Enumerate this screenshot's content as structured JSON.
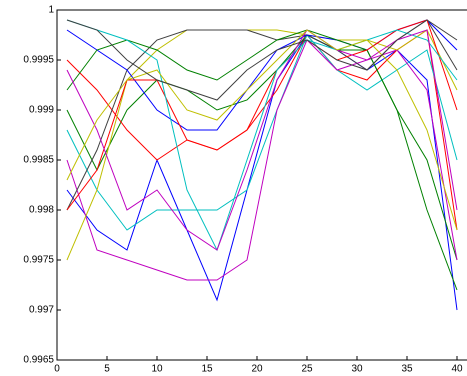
{
  "chart_data": {
    "type": "line",
    "x": [
      1,
      4,
      7,
      10,
      13,
      16,
      19,
      22,
      25,
      28,
      31,
      34,
      37,
      40
    ],
    "xlim": [
      0,
      40
    ],
    "xticks": [
      0,
      5,
      10,
      15,
      20,
      25,
      30,
      35,
      40
    ],
    "ylim": [
      0.9965,
      1
    ],
    "yticks": [
      0.9965,
      0.997,
      0.9975,
      0.998,
      0.9985,
      0.999,
      0.9995,
      1
    ],
    "grid": false,
    "series": [
      {
        "color": "#0000ff",
        "values": [
          0.9982,
          0.9978,
          0.9976,
          0.9985,
          0.9978,
          0.9971,
          0.9982,
          0.9993,
          0.99975,
          0.9996,
          0.9994,
          0.9996,
          0.9993,
          0.997
        ]
      },
      {
        "color": "#008000",
        "values": [
          0.999,
          0.9984,
          0.999,
          0.9993,
          0.9992,
          0.999,
          0.9991,
          0.9994,
          0.99975,
          0.9996,
          0.9996,
          0.999,
          0.9985,
          0.9975
        ]
      },
      {
        "color": "#ff0000",
        "values": [
          0.9995,
          0.9992,
          0.9988,
          0.9985,
          0.9987,
          0.9986,
          0.9988,
          0.9992,
          0.99975,
          0.9994,
          0.9993,
          0.9996,
          0.9998,
          0.9978
        ]
      },
      {
        "color": "#00bfbf",
        "values": [
          0.9988,
          0.9982,
          0.9978,
          0.998,
          0.998,
          0.998,
          0.9982,
          0.999,
          0.99975,
          0.9994,
          0.9992,
          0.9994,
          0.9996,
          0.9985
        ]
      },
      {
        "color": "#bf00bf",
        "values": [
          0.9985,
          0.9976,
          0.9975,
          0.9974,
          0.9973,
          0.9973,
          0.9975,
          0.999,
          0.9997,
          0.9994,
          0.9995,
          0.9996,
          0.9992,
          0.9975
        ]
      },
      {
        "color": "#bfbf00",
        "values": [
          0.9975,
          0.9982,
          0.9993,
          0.9996,
          0.9998,
          0.9998,
          0.9998,
          0.9998,
          0.99975,
          0.9997,
          0.9997,
          0.9996,
          0.9998,
          0.9992
        ]
      },
      {
        "color": "#404040",
        "values": [
          0.998,
          0.9986,
          0.9994,
          0.9997,
          0.9998,
          0.9998,
          0.9998,
          0.9997,
          0.99975,
          0.9996,
          0.9994,
          0.9997,
          0.9999,
          0.9994
        ]
      },
      {
        "color": "#0000ff",
        "values": [
          0.9998,
          0.9996,
          0.9994,
          0.999,
          0.9988,
          0.9988,
          0.9992,
          0.9996,
          0.99975,
          0.9997,
          0.9996,
          0.9998,
          0.9999,
          0.9996
        ]
      },
      {
        "color": "#008000",
        "values": [
          0.9992,
          0.9996,
          0.9997,
          0.9996,
          0.9994,
          0.9993,
          0.9995,
          0.9997,
          0.9998,
          0.9997,
          0.9996,
          0.999,
          0.998,
          0.9972
        ]
      },
      {
        "color": "#ff0000",
        "values": [
          0.998,
          0.9984,
          0.9993,
          0.9993,
          0.9987,
          0.9986,
          0.9988,
          0.9994,
          0.9997,
          0.9995,
          0.9996,
          0.9998,
          0.9999,
          0.999
        ]
      },
      {
        "color": "#00bfbf",
        "values": [
          0.9999,
          0.9998,
          0.9997,
          0.9995,
          0.9982,
          0.9976,
          0.9985,
          0.9994,
          0.9997,
          0.9996,
          0.9997,
          0.9998,
          0.9997,
          0.9993
        ]
      },
      {
        "color": "#bf00bf",
        "values": [
          0.9994,
          0.9988,
          0.998,
          0.9982,
          0.9978,
          0.9976,
          0.9984,
          0.9993,
          0.9998,
          0.9996,
          0.9995,
          0.9997,
          0.9998,
          0.998
        ]
      },
      {
        "color": "#bfbf00",
        "values": [
          0.9983,
          0.9989,
          0.9993,
          0.9994,
          0.999,
          0.9989,
          0.9992,
          0.9995,
          0.9998,
          0.9996,
          0.9997,
          0.9994,
          0.9988,
          0.9978
        ]
      },
      {
        "color": "#404040",
        "values": [
          0.9999,
          0.9998,
          0.9995,
          0.9993,
          0.9992,
          0.9991,
          0.9994,
          0.9996,
          0.9997,
          0.9995,
          0.9994,
          0.9997,
          0.9999,
          0.9997
        ]
      }
    ]
  }
}
